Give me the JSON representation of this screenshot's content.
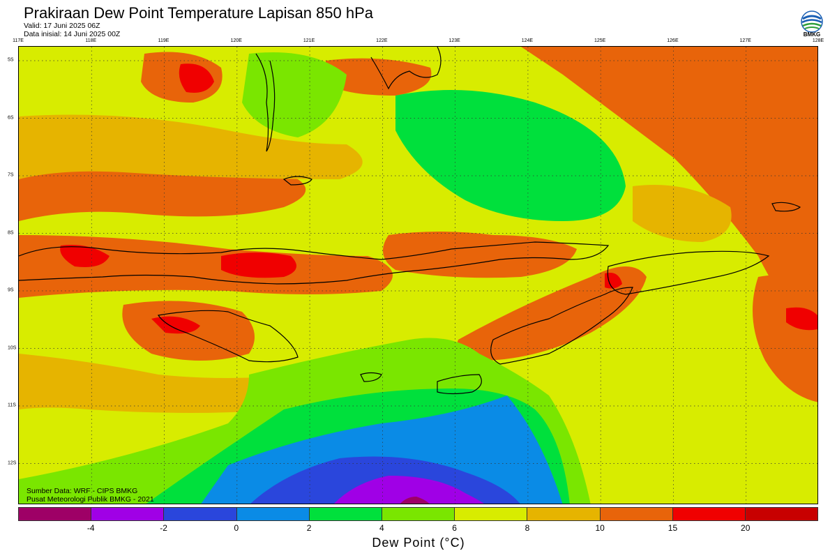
{
  "header": {
    "title": "Prakiraan Dew Point Temperature Lapisan 850 hPa",
    "valid": "Valid: 17 Juni 2025 06Z",
    "init": "Data inisial: 14 Juni 2025 00Z"
  },
  "logo": {
    "text": "BMKG",
    "icon": "bmkg-logo-icon"
  },
  "axes": {
    "lon_labels": [
      "117E",
      "118E",
      "119E",
      "120E",
      "121E",
      "122E",
      "123E",
      "124E",
      "125E",
      "126E",
      "127E",
      "128E"
    ],
    "lat_labels": [
      "5S",
      "6S",
      "7S",
      "8S",
      "9S",
      "10S",
      "11S",
      "12S"
    ]
  },
  "credits": {
    "source": "Sumber Data: WRF - CIPS BMKG",
    "center": "Pusat Meteorologi Publik BMKG - 2021"
  },
  "legend": {
    "label": "Dew Point (°C)",
    "colors": [
      "#9e0066",
      "#a000e6",
      "#2a46dc",
      "#0a8be6",
      "#00e03c",
      "#7ae600",
      "#d8ec00",
      "#e6b400",
      "#e8640a",
      "#f00000",
      "#c80000"
    ],
    "ticks": [
      "-4",
      "-2",
      "0",
      "2",
      "4",
      "6",
      "8",
      "10",
      "15",
      "20"
    ]
  }
}
